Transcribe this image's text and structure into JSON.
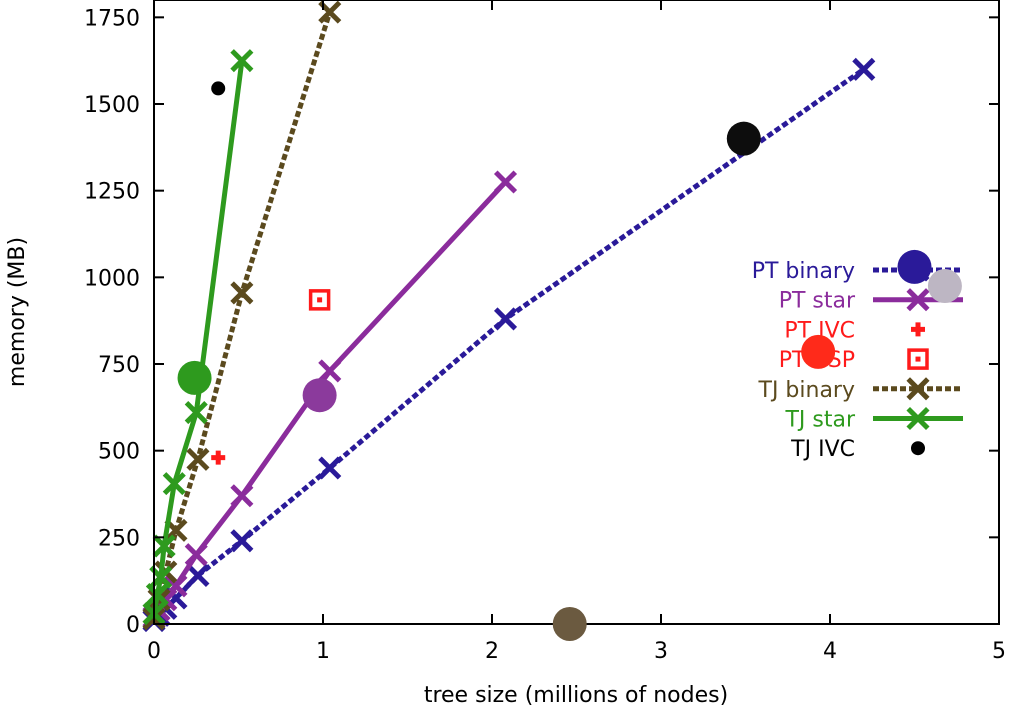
{
  "chart_data": {
    "type": "scatter",
    "xlabel": "tree size (millions of nodes)",
    "ylabel": "memory (MB)",
    "xlim": [
      0,
      5
    ],
    "ylim": [
      0,
      1800
    ],
    "xticks": [
      0,
      1,
      2,
      3,
      4,
      5
    ],
    "yticks": [
      0,
      250,
      500,
      750,
      1000,
      1250,
      1500,
      1750
    ],
    "grid": false,
    "legend_position": "right",
    "series": [
      {
        "name": "PT binary",
        "color": "#2a1a99",
        "line": "dotted",
        "marker": "x",
        "points": [
          [
            0.0,
            10
          ],
          [
            0.03,
            25
          ],
          [
            0.07,
            45
          ],
          [
            0.13,
            75
          ],
          [
            0.26,
            140
          ],
          [
            0.52,
            240
          ],
          [
            1.04,
            450
          ],
          [
            2.08,
            880
          ],
          [
            4.2,
            1600
          ]
        ]
      },
      {
        "name": "PT star",
        "color": "#8b2c9c",
        "line": "solid",
        "marker": "x",
        "points": [
          [
            0.0,
            20
          ],
          [
            0.03,
            40
          ],
          [
            0.07,
            70
          ],
          [
            0.13,
            110
          ],
          [
            0.25,
            200
          ],
          [
            0.52,
            370
          ],
          [
            1.04,
            730
          ],
          [
            2.08,
            1275
          ]
        ]
      },
      {
        "name": "PT IVC",
        "color": "#ff1a1a",
        "line": "none",
        "marker": "plus",
        "points": [
          [
            0.38,
            480
          ]
        ]
      },
      {
        "name": "PT CSP",
        "color": "#ff1a1a",
        "line": "none",
        "marker": "square",
        "points": [
          [
            0.98,
            935
          ]
        ]
      },
      {
        "name": "TJ binary",
        "color": "#5b4a1e",
        "line": "dotted",
        "marker": "x",
        "points": [
          [
            0.0,
            15
          ],
          [
            0.03,
            70
          ],
          [
            0.07,
            150
          ],
          [
            0.13,
            270
          ],
          [
            0.26,
            475
          ],
          [
            0.52,
            955
          ],
          [
            1.04,
            1765
          ]
        ]
      },
      {
        "name": "TJ star",
        "color": "#2e9a1e",
        "line": "solid",
        "marker": "x",
        "points": [
          [
            0.0,
            30
          ],
          [
            0.02,
            85
          ],
          [
            0.04,
            135
          ],
          [
            0.06,
            225
          ],
          [
            0.12,
            405
          ],
          [
            0.25,
            610
          ],
          [
            0.52,
            1625
          ]
        ]
      },
      {
        "name": "TJ IVC",
        "color": "#000000",
        "line": "none",
        "marker": "dot",
        "points": [
          [
            0.38,
            1545
          ]
        ]
      }
    ],
    "overlay_circles": [
      {
        "color": "#2a1a99",
        "x": 4.5,
        "y": 1030
      },
      {
        "color": "#bdb6c3",
        "x": 4.68,
        "y": 975
      },
      {
        "color": "#ff2a1a",
        "x": 3.93,
        "y": 785
      },
      {
        "color": "#0d0d0d",
        "x": 3.49,
        "y": 1400
      },
      {
        "color": "#8b3a9c",
        "x": 0.98,
        "y": 660
      },
      {
        "color": "#2e9a1e",
        "x": 0.24,
        "y": 710
      },
      {
        "color": "#6b5a40",
        "x": 2.46,
        "y": 0
      }
    ]
  }
}
